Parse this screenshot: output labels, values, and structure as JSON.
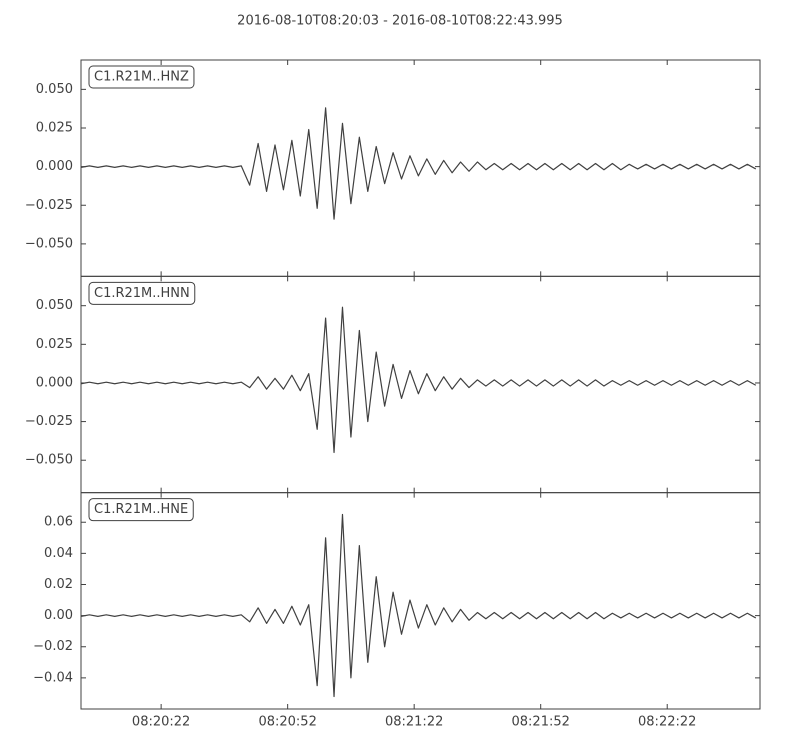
{
  "title": "2016-08-10T08:20:03  -  2016-08-10T08:22:43.995",
  "chart_data": [
    {
      "type": "line",
      "series": [
        {
          "name": "C1.R21M..HNZ",
          "color": "#404040",
          "values": [
            -0.0005,
            0.0005,
            -0.0005,
            0.0005,
            -0.0005,
            0.0005,
            -0.0005,
            0.0005,
            -0.0005,
            0.0005,
            -0.0005,
            0.0005,
            -0.0005,
            0.0005,
            -0.0005,
            0.0005,
            -0.0005,
            0.0005,
            -0.0005,
            0.0005,
            -0.012,
            0.015,
            -0.016,
            0.014,
            -0.015,
            0.017,
            -0.019,
            0.024,
            -0.027,
            0.038,
            -0.034,
            0.028,
            -0.024,
            0.019,
            -0.016,
            0.013,
            -0.011,
            0.009,
            -0.008,
            0.007,
            -0.006,
            0.005,
            -0.005,
            0.004,
            -0.004,
            0.003,
            -0.003,
            0.003,
            -0.002,
            0.002,
            -0.002,
            0.002,
            -0.002,
            0.002,
            -0.002,
            0.002,
            -0.002,
            0.002,
            -0.002,
            0.002,
            -0.002,
            0.002,
            -0.002,
            0.002,
            -0.002,
            0.0015,
            -0.0015,
            0.0015,
            -0.0015,
            0.0015,
            -0.0015,
            0.0015,
            -0.0015,
            0.0015,
            -0.0015,
            0.0015,
            -0.0015,
            0.0015,
            -0.0015,
            0.0015,
            -0.0015
          ]
        }
      ],
      "x": [
        "08:20:03",
        "08:20:05",
        "08:20:07",
        "08:20:09",
        "08:20:11",
        "08:20:13",
        "08:20:15",
        "08:20:17",
        "08:20:19",
        "08:20:21",
        "08:20:23",
        "08:20:25",
        "08:20:27",
        "08:20:29",
        "08:20:31",
        "08:20:33",
        "08:20:35",
        "08:20:37",
        "08:20:39",
        "08:20:41",
        "08:20:43",
        "08:20:45",
        "08:20:47",
        "08:20:49",
        "08:20:51",
        "08:20:53",
        "08:20:55",
        "08:20:57",
        "08:20:59",
        "08:21:01",
        "08:21:03",
        "08:21:05",
        "08:21:07",
        "08:21:09",
        "08:21:11",
        "08:21:13",
        "08:21:15",
        "08:21:17",
        "08:21:19",
        "08:21:21",
        "08:21:23",
        "08:21:25",
        "08:21:27",
        "08:21:29",
        "08:21:31",
        "08:21:33",
        "08:21:35",
        "08:21:37",
        "08:21:39",
        "08:21:41",
        "08:21:43",
        "08:21:45",
        "08:21:47",
        "08:21:49",
        "08:21:51",
        "08:21:53",
        "08:21:55",
        "08:21:57",
        "08:21:59",
        "08:22:01",
        "08:22:03",
        "08:22:05",
        "08:22:07",
        "08:22:09",
        "08:22:11",
        "08:22:13",
        "08:22:15",
        "08:22:17",
        "08:22:19",
        "08:22:21",
        "08:22:23",
        "08:22:25",
        "08:22:27",
        "08:22:29",
        "08:22:31",
        "08:22:33",
        "08:22:35",
        "08:22:37",
        "08:22:39",
        "08:22:41",
        "08:22:43"
      ],
      "xlim": [
        "08:20:03",
        "08:22:44"
      ],
      "xticks": [
        "08:20:22",
        "08:20:52",
        "08:21:22",
        "08:21:52",
        "08:22:22"
      ],
      "ylim": [
        -0.071,
        0.069
      ],
      "yticks": [
        {
          "value": 0.05,
          "label": "0.050"
        },
        {
          "value": 0.025,
          "label": "0.025"
        },
        {
          "value": 0,
          "label": "0.000"
        },
        {
          "value": -0.025,
          "label": "−0.025"
        },
        {
          "value": -0.05,
          "label": "−0.050"
        }
      ]
    },
    {
      "type": "line",
      "series": [
        {
          "name": "C1.R21M..HNN",
          "color": "#404040",
          "values": [
            -0.0005,
            0.0005,
            -0.0005,
            0.0005,
            -0.0005,
            0.0005,
            -0.0005,
            0.0005,
            -0.0005,
            0.0005,
            -0.0005,
            0.0005,
            -0.0005,
            0.0005,
            -0.0005,
            0.0005,
            -0.0005,
            0.0005,
            -0.0005,
            0.0005,
            -0.003,
            0.004,
            -0.004,
            0.003,
            -0.004,
            0.005,
            -0.005,
            0.006,
            -0.03,
            0.042,
            -0.045,
            0.049,
            -0.035,
            0.034,
            -0.025,
            0.02,
            -0.015,
            0.012,
            -0.01,
            0.008,
            -0.007,
            0.006,
            -0.005,
            0.004,
            -0.004,
            0.003,
            -0.003,
            0.002,
            -0.002,
            0.002,
            -0.002,
            0.002,
            -0.002,
            0.002,
            -0.002,
            0.002,
            -0.002,
            0.002,
            -0.002,
            0.002,
            -0.002,
            0.002,
            -0.002,
            0.0015,
            -0.0015,
            0.0015,
            -0.0015,
            0.0015,
            -0.0015,
            0.0015,
            -0.0015,
            0.0015,
            -0.0015,
            0.0015,
            -0.0015,
            0.0015,
            -0.0015,
            0.0015,
            -0.0015,
            0.0015,
            -0.0015
          ]
        }
      ],
      "x": [
        "08:20:03",
        "08:20:05",
        "08:20:07",
        "08:20:09",
        "08:20:11",
        "08:20:13",
        "08:20:15",
        "08:20:17",
        "08:20:19",
        "08:20:21",
        "08:20:23",
        "08:20:25",
        "08:20:27",
        "08:20:29",
        "08:20:31",
        "08:20:33",
        "08:20:35",
        "08:20:37",
        "08:20:39",
        "08:20:41",
        "08:20:43",
        "08:20:45",
        "08:20:47",
        "08:20:49",
        "08:20:51",
        "08:20:53",
        "08:20:55",
        "08:20:57",
        "08:20:59",
        "08:21:01",
        "08:21:03",
        "08:21:05",
        "08:21:07",
        "08:21:09",
        "08:21:11",
        "08:21:13",
        "08:21:15",
        "08:21:17",
        "08:21:19",
        "08:21:21",
        "08:21:23",
        "08:21:25",
        "08:21:27",
        "08:21:29",
        "08:21:31",
        "08:21:33",
        "08:21:35",
        "08:21:37",
        "08:21:39",
        "08:21:41",
        "08:21:43",
        "08:21:45",
        "08:21:47",
        "08:21:49",
        "08:21:51",
        "08:21:53",
        "08:21:55",
        "08:21:57",
        "08:21:59",
        "08:22:01",
        "08:22:03",
        "08:22:05",
        "08:22:07",
        "08:22:09",
        "08:22:11",
        "08:22:13",
        "08:22:15",
        "08:22:17",
        "08:22:19",
        "08:22:21",
        "08:22:23",
        "08:22:25",
        "08:22:27",
        "08:22:29",
        "08:22:31",
        "08:22:33",
        "08:22:35",
        "08:22:37",
        "08:22:39",
        "08:22:41",
        "08:22:43"
      ],
      "xlim": [
        "08:20:03",
        "08:22:44"
      ],
      "xticks": [
        "08:20:22",
        "08:20:52",
        "08:21:22",
        "08:21:52",
        "08:22:22"
      ],
      "ylim": [
        -0.071,
        0.069
      ],
      "yticks": [
        {
          "value": 0.05,
          "label": "0.050"
        },
        {
          "value": 0.025,
          "label": "0.025"
        },
        {
          "value": 0,
          "label": "0.000"
        },
        {
          "value": -0.025,
          "label": "−0.025"
        },
        {
          "value": -0.05,
          "label": "−0.050"
        }
      ]
    },
    {
      "type": "line",
      "series": [
        {
          "name": "C1.R21M..HNE",
          "color": "#404040",
          "values": [
            -0.0005,
            0.0005,
            -0.0005,
            0.0005,
            -0.0005,
            0.0005,
            -0.0005,
            0.0005,
            -0.0005,
            0.0005,
            -0.0005,
            0.0005,
            -0.0005,
            0.0005,
            -0.0005,
            0.0005,
            -0.0005,
            0.0005,
            -0.0005,
            0.0005,
            -0.004,
            0.005,
            -0.005,
            0.004,
            -0.005,
            0.006,
            -0.006,
            0.007,
            -0.045,
            0.05,
            -0.052,
            0.065,
            -0.04,
            0.045,
            -0.03,
            0.025,
            -0.02,
            0.015,
            -0.012,
            0.01,
            -0.008,
            0.007,
            -0.006,
            0.005,
            -0.004,
            0.004,
            -0.003,
            0.002,
            -0.002,
            0.002,
            -0.002,
            0.002,
            -0.002,
            0.002,
            -0.002,
            0.002,
            -0.002,
            0.002,
            -0.002,
            0.002,
            -0.002,
            0.002,
            -0.002,
            0.0015,
            -0.0015,
            0.0015,
            -0.0015,
            0.0015,
            -0.0015,
            0.0015,
            -0.0015,
            0.0015,
            -0.0015,
            0.0015,
            -0.0015,
            0.0015,
            -0.0015,
            0.0015,
            -0.0015,
            0.0015,
            -0.0015
          ]
        }
      ],
      "x": [
        "08:20:03",
        "08:20:05",
        "08:20:07",
        "08:20:09",
        "08:20:11",
        "08:20:13",
        "08:20:15",
        "08:20:17",
        "08:20:19",
        "08:20:21",
        "08:20:23",
        "08:20:25",
        "08:20:27",
        "08:20:29",
        "08:20:31",
        "08:20:33",
        "08:20:35",
        "08:20:37",
        "08:20:39",
        "08:20:41",
        "08:20:43",
        "08:20:45",
        "08:20:47",
        "08:20:49",
        "08:20:51",
        "08:20:53",
        "08:20:55",
        "08:20:57",
        "08:20:59",
        "08:21:01",
        "08:21:03",
        "08:21:05",
        "08:21:07",
        "08:21:09",
        "08:21:11",
        "08:21:13",
        "08:21:15",
        "08:21:17",
        "08:21:19",
        "08:21:21",
        "08:21:23",
        "08:21:25",
        "08:21:27",
        "08:21:29",
        "08:21:31",
        "08:21:33",
        "08:21:35",
        "08:21:37",
        "08:21:39",
        "08:21:41",
        "08:21:43",
        "08:21:45",
        "08:21:47",
        "08:21:49",
        "08:21:51",
        "08:21:53",
        "08:21:55",
        "08:21:57",
        "08:21:59",
        "08:22:01",
        "08:22:03",
        "08:22:05",
        "08:22:07",
        "08:22:09",
        "08:22:11",
        "08:22:13",
        "08:22:15",
        "08:22:17",
        "08:22:19",
        "08:22:21",
        "08:22:23",
        "08:22:25",
        "08:22:27",
        "08:22:29",
        "08:22:31",
        "08:22:33",
        "08:22:35",
        "08:22:37",
        "08:22:39",
        "08:22:41",
        "08:22:43"
      ],
      "xlim": [
        "08:20:03",
        "08:22:44"
      ],
      "xticks": [
        "08:20:22",
        "08:20:52",
        "08:21:22",
        "08:21:52",
        "08:22:22"
      ],
      "ylim": [
        -0.06,
        0.079
      ],
      "yticks": [
        0.06,
        0.04,
        0.02,
        {
          "value": 0,
          "label": "0.00"
        },
        {
          "value": -0.02,
          "label": "−0.02"
        },
        {
          "value": -0.04,
          "label": "−0.04"
        }
      ]
    }
  ]
}
